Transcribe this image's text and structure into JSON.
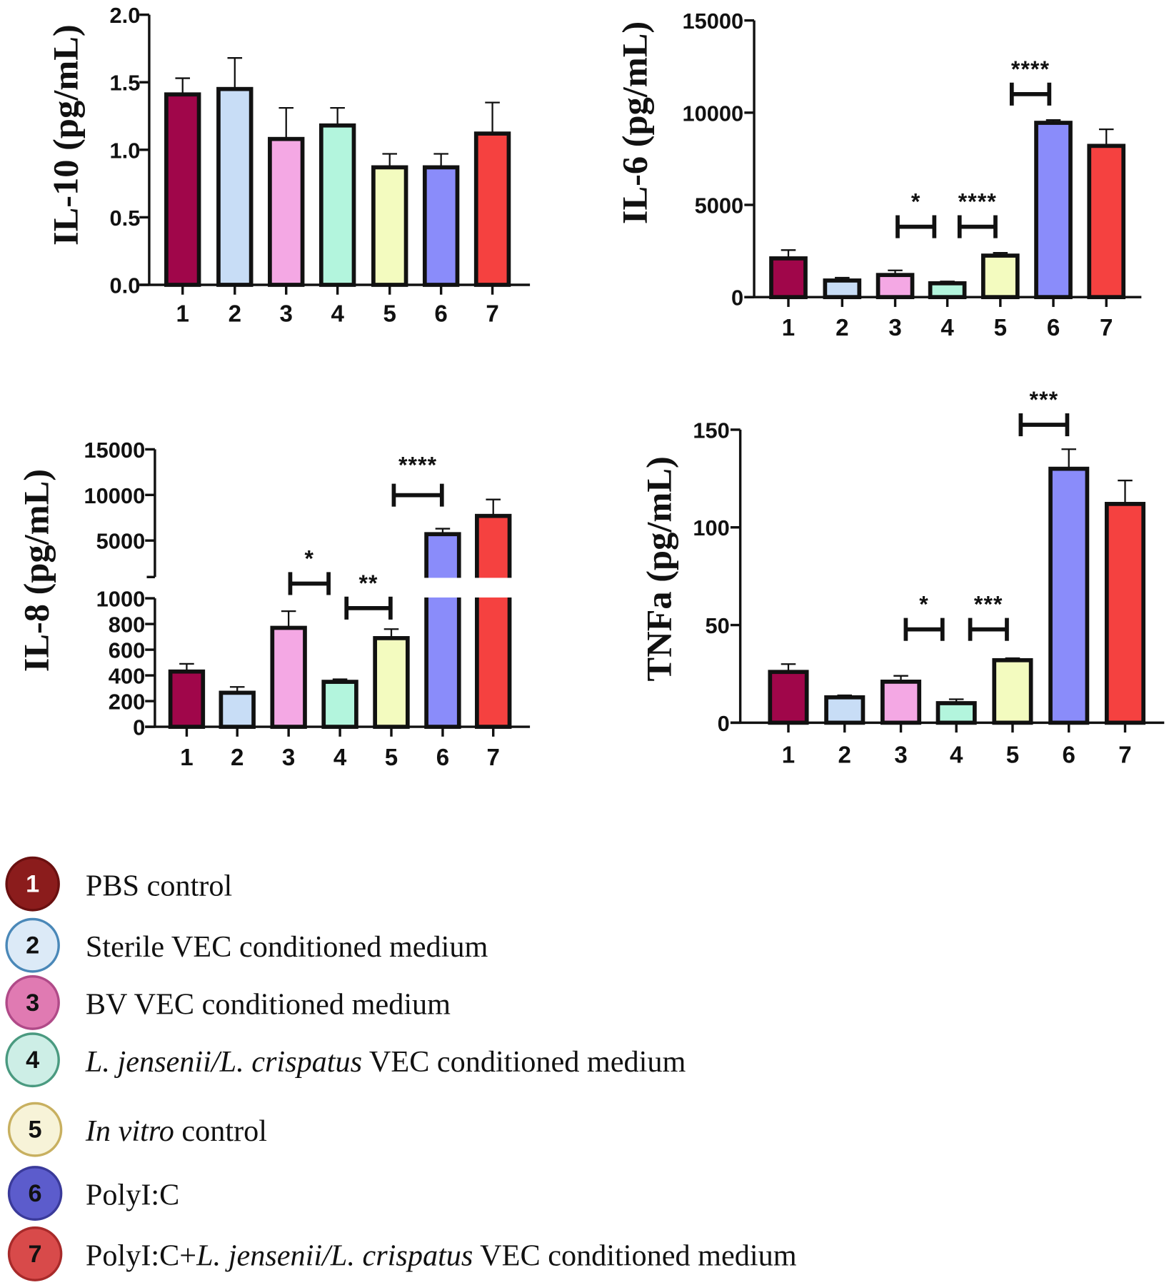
{
  "chart_data": [
    {
      "id": "il10",
      "type": "bar",
      "title": "",
      "xlabel": "",
      "ylabel": "IL-10 (pg/mL)",
      "categories": [
        "1",
        "2",
        "3",
        "4",
        "5",
        "6",
        "7"
      ],
      "values": [
        1.41,
        1.45,
        1.08,
        1.18,
        0.87,
        0.87,
        1.12
      ],
      "error_upper": [
        1.53,
        1.68,
        1.31,
        1.31,
        0.97,
        0.97,
        1.35
      ],
      "ylim": [
        0,
        2.0
      ],
      "yticks": [
        "0.0",
        "0.5",
        "1.0",
        "1.5",
        "2.0"
      ],
      "ytick_values": [
        0,
        0.5,
        1.0,
        1.5,
        2.0
      ],
      "comparisons": []
    },
    {
      "id": "il6",
      "type": "bar",
      "title": "",
      "xlabel": "",
      "ylabel": "IL-6 (pg/mL)",
      "categories": [
        "1",
        "2",
        "3",
        "4",
        "5",
        "6",
        "7"
      ],
      "values": [
        2100,
        900,
        1200,
        750,
        2250,
        9450,
        8200
      ],
      "error_upper": [
        2550,
        1050,
        1450,
        850,
        2400,
        9600,
        9100
      ],
      "ylim": [
        0,
        15000
      ],
      "yticks": [
        "0",
        "5000",
        "10000",
        "15000"
      ],
      "ytick_values": [
        0,
        5000,
        10000,
        15000
      ],
      "comparisons": [
        {
          "groups": [
            "3",
            "4"
          ],
          "label": "*"
        },
        {
          "groups": [
            "4",
            "5"
          ],
          "label": "****"
        },
        {
          "groups": [
            "5",
            "6"
          ],
          "label": "****"
        }
      ]
    },
    {
      "id": "il8",
      "type": "bar",
      "title": "",
      "xlabel": "",
      "ylabel": "IL-8 (pg/mL)",
      "categories": [
        "1",
        "2",
        "3",
        "4",
        "5",
        "6",
        "7"
      ],
      "values": [
        430,
        265,
        770,
        350,
        690,
        5700,
        7700
      ],
      "error_upper": [
        490,
        310,
        900,
        370,
        760,
        6300,
        9500
      ],
      "ylim": [
        0,
        15000
      ],
      "axis_break": [
        1000,
        1070
      ],
      "yticks": [
        "0",
        "200",
        "400",
        "600",
        "800",
        "1000",
        "5000",
        "10000",
        "15000"
      ],
      "ytick_values": [
        0,
        200,
        400,
        600,
        800,
        1000,
        5000,
        10000,
        15000
      ],
      "comparisons": [
        {
          "groups": [
            "3",
            "4"
          ],
          "label": "*"
        },
        {
          "groups": [
            "4",
            "5"
          ],
          "label": "**"
        },
        {
          "groups": [
            "5",
            "6"
          ],
          "label": "****"
        }
      ]
    },
    {
      "id": "tnfa",
      "type": "bar",
      "title": "",
      "xlabel": "",
      "ylabel": "TNFa (pg/mL)",
      "categories": [
        "1",
        "2",
        "3",
        "4",
        "5",
        "6",
        "7"
      ],
      "values": [
        26,
        13,
        21,
        10,
        32,
        130,
        112
      ],
      "error_upper": [
        30,
        14,
        24,
        12,
        33,
        140,
        124
      ],
      "ylim": [
        0,
        150
      ],
      "yticks": [
        "0",
        "50",
        "100",
        "150"
      ],
      "ytick_values": [
        0,
        50,
        100,
        150
      ],
      "comparisons": [
        {
          "groups": [
            "3",
            "4"
          ],
          "label": "*"
        },
        {
          "groups": [
            "4",
            "5"
          ],
          "label": "***"
        },
        {
          "groups": [
            "5",
            "6"
          ],
          "label": "***"
        }
      ]
    }
  ],
  "bar_colors": [
    "#a0064a",
    "#c8ddf6",
    "#f4a8e4",
    "#b3f5dd",
    "#f3fbbf",
    "#8a8cfa",
    "#f54140"
  ],
  "legend": {
    "items": [
      {
        "number": "1",
        "fill": "#8b1c1c",
        "stroke": "#6a1010",
        "num_color": "#ffffff",
        "parts": [
          {
            "text": "PBS control",
            "italic": false
          }
        ]
      },
      {
        "number": "2",
        "fill": "#dceaf7",
        "stroke": "#4a88b8",
        "num_color": "#111111",
        "parts": [
          {
            "text": "Sterile VEC conditioned medium",
            "italic": false
          }
        ]
      },
      {
        "number": "3",
        "fill": "#e07ab2",
        "stroke": "#b04a88",
        "num_color": "#111111",
        "parts": [
          {
            "text": "BV VEC conditioned medium",
            "italic": false
          }
        ]
      },
      {
        "number": "4",
        "fill": "#cdeee6",
        "stroke": "#4a9a80",
        "num_color": "#111111",
        "parts": [
          {
            "text": "L. jensenii/L. crispatus",
            "italic": true
          },
          {
            "text": " VEC conditioned medium",
            "italic": false
          }
        ]
      },
      {
        "number": "5",
        "fill": "#f7f3d8",
        "stroke": "#c8b060",
        "num_color": "#111111",
        "parts": [
          {
            "text": "In vitro",
            "italic": true
          },
          {
            "text": " control",
            "italic": false
          }
        ]
      },
      {
        "number": "6",
        "fill": "#5c5ccc",
        "stroke": "#3a3a9a",
        "num_color": "#111111",
        "parts": [
          {
            "text": "PolyI:C",
            "italic": false
          }
        ]
      },
      {
        "number": "7",
        "fill": "#d84a4a",
        "stroke": "#a82a2a",
        "num_color": "#111111",
        "parts": [
          {
            "text": "PolyI:C+",
            "italic": false
          },
          {
            "text": "L. jensenii/L. crispatus",
            "italic": true
          },
          {
            "text": " VEC conditioned medium",
            "italic": false
          }
        ]
      }
    ]
  }
}
